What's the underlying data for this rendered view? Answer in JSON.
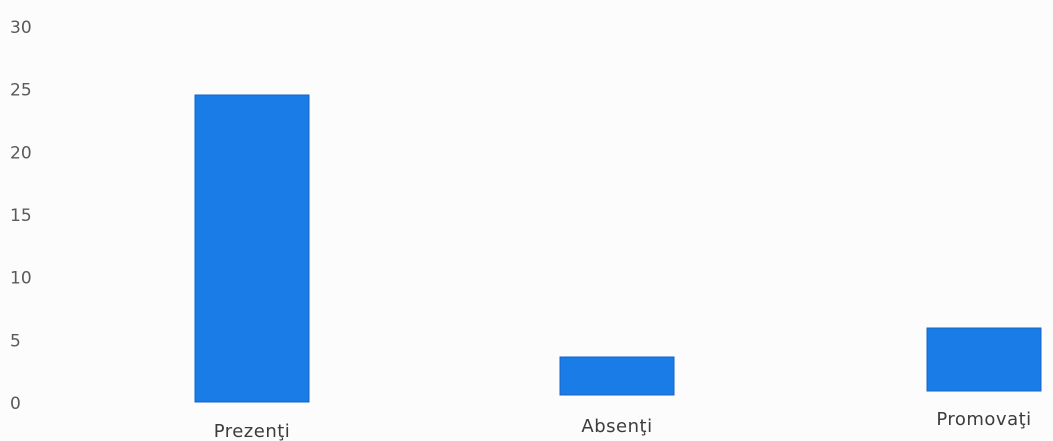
{
  "chart_data": {
    "type": "bar",
    "categories": [
      "Prezenţi",
      "Absenţi",
      "Promovaţi"
    ],
    "values": [
      24,
      3,
      5
    ],
    "ylim": [
      0,
      30
    ],
    "yticks": [
      "0",
      "5",
      "10",
      "15",
      "20",
      "25",
      "30"
    ],
    "grid": false,
    "legend": "none",
    "colors": {
      "bar": "#1a7ce6",
      "bar_edge": "#1565c8"
    }
  }
}
